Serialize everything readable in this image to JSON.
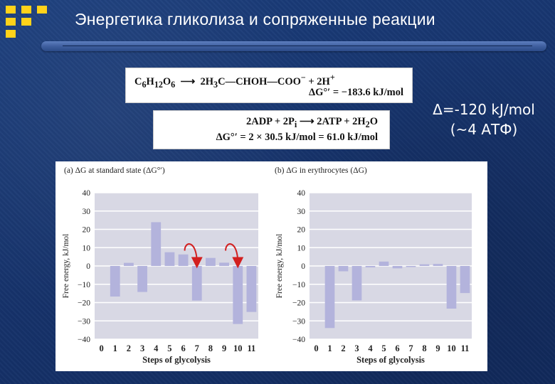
{
  "slide": {
    "title": "Энергетика гликолиза и сопряженные реакции",
    "note_line1": "Δ=-120 kJ/mol",
    "note_line2": "(~4 АТФ)",
    "logo_color": "#ffd21a",
    "background_color": "#17356e"
  },
  "equations": {
    "glucose_left": "C6H12O6",
    "glucose_right": "2H3C—CHOH—COO⁻ + 2H⁺",
    "glucose_dg": "ΔG°′ = −183.6 kJ/mol",
    "atp_reaction": "2ADP + 2Pi → 2ATP + 2H2O",
    "atp_dg": "ΔG°′ = 2 × 30.5 kJ/mol = 61.0 kJ/mol"
  },
  "chart_data": [
    {
      "type": "bar",
      "panel": "(a)",
      "title": "ΔG at standard state (ΔG°′)",
      "xlabel": "Steps of glycolysis",
      "ylabel": "Free energy, kJ/mol",
      "ylim": [
        -40,
        40
      ],
      "yticks": [
        40,
        30,
        20,
        10,
        0,
        -10,
        -20,
        -30,
        -40
      ],
      "categories": [
        "0",
        "1",
        "2",
        "3",
        "4",
        "5",
        "6",
        "7",
        "8",
        "9",
        "10",
        "11"
      ],
      "values": [
        null,
        -16.7,
        1.7,
        -14.2,
        23.9,
        7.5,
        6.3,
        -18.9,
        4.4,
        1.8,
        -31.7,
        -25.1
      ],
      "bar_color": "#b3b3dc",
      "grid": true,
      "annotations": [
        {
          "type": "curved-arrow",
          "from_step": 6,
          "to_step": 7,
          "color": "#d21f1f"
        },
        {
          "type": "curved-arrow",
          "from_step": 9,
          "to_step": 10,
          "color": "#d21f1f"
        }
      ]
    },
    {
      "type": "bar",
      "panel": "(b)",
      "title": "ΔG in erythrocytes (ΔG)",
      "xlabel": "Steps of glycolysis",
      "ylabel": "Free energy, kJ/mol",
      "ylim": [
        -40,
        40
      ],
      "yticks": [
        40,
        30,
        20,
        10,
        0,
        -10,
        -20,
        -30,
        -40
      ],
      "categories": [
        "0",
        "1",
        "2",
        "3",
        "4",
        "5",
        "6",
        "7",
        "8",
        "9",
        "10",
        "11"
      ],
      "values": [
        null,
        -33.9,
        -2.9,
        -18.8,
        -0.8,
        2.4,
        -1.3,
        -0.6,
        0.9,
        1.1,
        -23.3,
        -14.8
      ],
      "bar_color": "#b3b3dc",
      "grid": true
    }
  ]
}
